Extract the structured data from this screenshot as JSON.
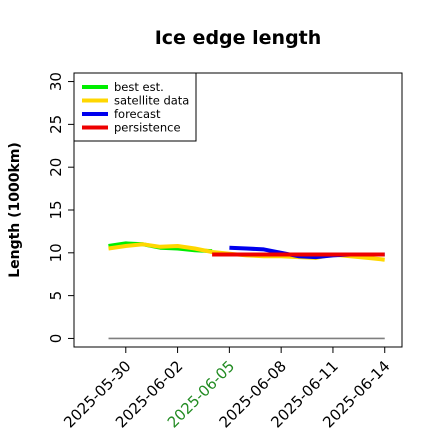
{
  "chart_data": {
    "type": "line",
    "title": "Ice edge length",
    "ylabel": "Length (1000km)",
    "xlabel": "",
    "ylim": [
      -1,
      31
    ],
    "yticks": [
      0,
      5,
      10,
      15,
      20,
      25,
      30
    ],
    "xlim": [
      "2025-05-27",
      "2025-06-15"
    ],
    "xticks": [
      "2025-05-30",
      "2025-06-02",
      "2025-06-05",
      "2025-06-08",
      "2025-06-11",
      "2025-06-14"
    ],
    "highlight_tick": "2025-06-05",
    "highlight_color": "#228b22",
    "grid": false,
    "legend": {
      "position": "top-left",
      "entries": [
        "best est.",
        "satellite data",
        "forecast",
        "persistence"
      ]
    },
    "baseline": {
      "x": [
        "2025-05-29",
        "2025-06-14"
      ],
      "y": [
        0,
        0
      ],
      "color": "#7f7f7f"
    },
    "series": [
      {
        "name": "best est.",
        "color": "#00ee00",
        "x": [
          "2025-05-29",
          "2025-05-30",
          "2025-05-31",
          "2025-06-01",
          "2025-06-02",
          "2025-06-03",
          "2025-06-04"
        ],
        "y": [
          10.8,
          11.1,
          11.0,
          10.6,
          10.5,
          10.3,
          10.2
        ]
      },
      {
        "name": "satellite data",
        "color": "#ffd700",
        "x": [
          "2025-05-29",
          "2025-05-30",
          "2025-05-31",
          "2025-06-01",
          "2025-06-02",
          "2025-06-03",
          "2025-06-04",
          "2025-06-05",
          "2025-06-06",
          "2025-06-07",
          "2025-06-08",
          "2025-06-09",
          "2025-06-10",
          "2025-06-11",
          "2025-06-12",
          "2025-06-13",
          "2025-06-14"
        ],
        "y": [
          10.5,
          10.8,
          11.0,
          10.7,
          10.8,
          10.5,
          10.1,
          9.9,
          9.7,
          9.6,
          9.6,
          9.5,
          9.4,
          9.8,
          9.6,
          9.4,
          9.2
        ]
      },
      {
        "name": "forecast",
        "color": "#0000ee",
        "x": [
          "2025-06-05",
          "2025-06-06",
          "2025-06-07",
          "2025-06-08",
          "2025-06-09",
          "2025-06-10",
          "2025-06-11",
          "2025-06-12",
          "2025-06-13",
          "2025-06-14"
        ],
        "y": [
          10.6,
          10.5,
          10.4,
          10.0,
          9.6,
          9.5,
          9.7,
          9.8,
          9.8,
          9.8
        ]
      },
      {
        "name": "persistence",
        "color": "#ee0000",
        "x": [
          "2025-06-04",
          "2025-06-14"
        ],
        "y": [
          9.8,
          9.8
        ]
      }
    ]
  }
}
